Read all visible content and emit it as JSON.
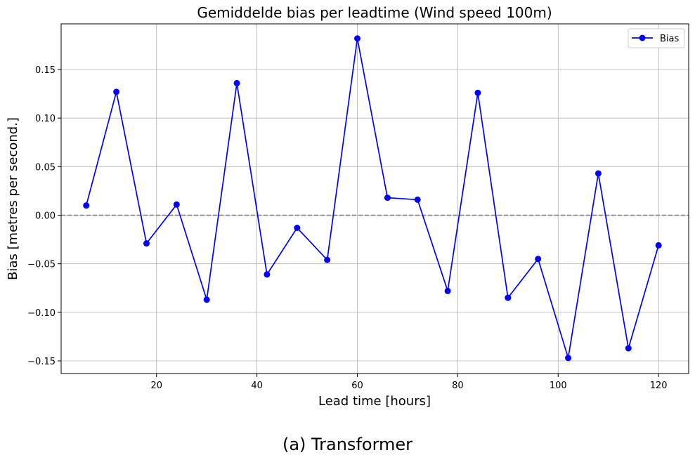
{
  "caption": "(a) Transformer",
  "chart_data": {
    "type": "line",
    "title": "Gemiddelde bias per leadtime (Wind speed 100m)",
    "xlabel": "Lead time [hours]",
    "ylabel": "Bias [metres per second.]",
    "xlim": [
      1,
      126
    ],
    "ylim": [
      -0.163,
      0.197
    ],
    "xticks": [
      20,
      40,
      60,
      80,
      100,
      120
    ],
    "yticks": [
      -0.15,
      -0.1,
      -0.05,
      0.0,
      0.05,
      0.1,
      0.15
    ],
    "ytick_labels": [
      "−0.15",
      "−0.10",
      "−0.05",
      "0.00",
      "0.05",
      "0.10",
      "0.15"
    ],
    "grid": true,
    "legend_position": "top-right",
    "reference_line": {
      "y": 0.0,
      "style": "dashed",
      "color": "#808080"
    },
    "series": [
      {
        "name": "Bias",
        "color": "#0000ff",
        "marker": "circle",
        "x": [
          6,
          12,
          18,
          24,
          30,
          36,
          42,
          48,
          54,
          60,
          66,
          72,
          78,
          84,
          90,
          96,
          102,
          108,
          114,
          120
        ],
        "y": [
          0.01,
          0.127,
          -0.029,
          0.011,
          -0.087,
          0.136,
          -0.061,
          -0.013,
          -0.046,
          0.182,
          0.018,
          0.016,
          -0.078,
          0.126,
          -0.085,
          -0.045,
          -0.147,
          0.043,
          -0.137,
          -0.031
        ]
      }
    ]
  }
}
